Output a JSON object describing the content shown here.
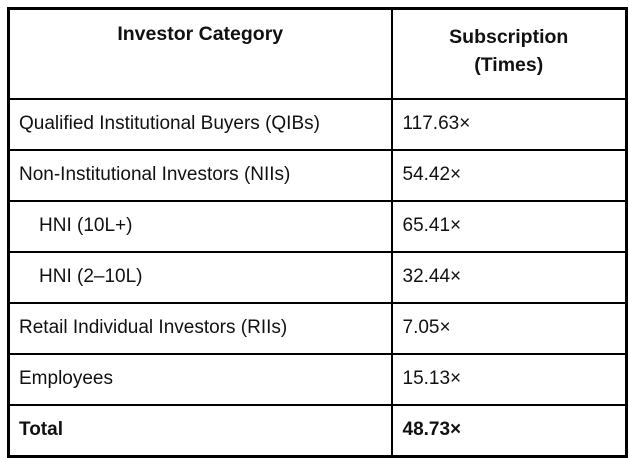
{
  "chart_data": {
    "type": "table",
    "title": "",
    "columns": [
      "Investor Category",
      "Subscription (Times)"
    ],
    "header": {
      "col1": "Investor Category",
      "col2_line1": "Subscription",
      "col2_line2": "(Times)"
    },
    "rows": [
      {
        "category": "Qualified Institutional Buyers (QIBs)",
        "subscription_times": 117.63,
        "subscription_label": "117.63×",
        "indent": false,
        "bold": false
      },
      {
        "category": "Non-Institutional Investors (NIIs)",
        "subscription_times": 54.42,
        "subscription_label": "54.42×",
        "indent": false,
        "bold": false
      },
      {
        "category": "HNI (10L+)",
        "subscription_times": 65.41,
        "subscription_label": "65.41×",
        "indent": true,
        "bold": false
      },
      {
        "category": "HNI (2–10L)",
        "subscription_times": 32.44,
        "subscription_label": "32.44×",
        "indent": true,
        "bold": false
      },
      {
        "category": "Retail Individual Investors (RIIs)",
        "subscription_times": 7.05,
        "subscription_label": "7.05×",
        "indent": false,
        "bold": false
      },
      {
        "category": "Employees",
        "subscription_times": 15.13,
        "subscription_label": "15.13×",
        "indent": false,
        "bold": false
      },
      {
        "category": "Total",
        "subscription_times": 48.73,
        "subscription_label": "48.73×",
        "indent": false,
        "bold": true
      }
    ],
    "colors": {
      "border": "#000000",
      "text": "#111111",
      "background": "#ffffff"
    }
  }
}
